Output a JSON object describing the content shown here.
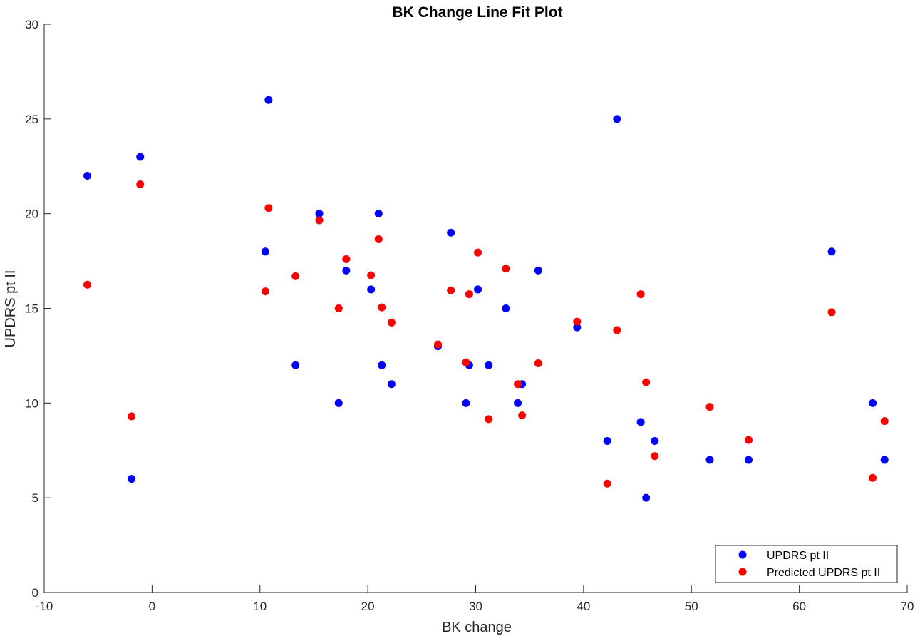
{
  "chart_data": {
    "type": "scatter",
    "title": "BK Change Line Fit Plot",
    "xlabel": "BK change",
    "ylabel": "UPDRS pt II",
    "xlim": [
      -10,
      70
    ],
    "ylim": [
      0,
      30
    ],
    "xticks": [
      -10,
      0,
      10,
      20,
      30,
      40,
      50,
      60,
      70
    ],
    "yticks": [
      0,
      5,
      10,
      15,
      20,
      25,
      30
    ],
    "grid": false,
    "legend_position": "bottom-right",
    "series": [
      {
        "name": "UPDRS pt II",
        "color": "#0000ff",
        "points": [
          [
            -6.0,
            22
          ],
          [
            -1.9,
            6
          ],
          [
            -1.1,
            23
          ],
          [
            10.5,
            18
          ],
          [
            10.8,
            26
          ],
          [
            13.3,
            12
          ],
          [
            15.5,
            20
          ],
          [
            17.3,
            10
          ],
          [
            18.0,
            17
          ],
          [
            20.3,
            16
          ],
          [
            21.0,
            20
          ],
          [
            21.3,
            12
          ],
          [
            22.2,
            11
          ],
          [
            26.5,
            13
          ],
          [
            27.7,
            19
          ],
          [
            29.1,
            10
          ],
          [
            29.4,
            12
          ],
          [
            30.2,
            16
          ],
          [
            31.2,
            12
          ],
          [
            32.8,
            15
          ],
          [
            33.9,
            10
          ],
          [
            34.3,
            11
          ],
          [
            35.8,
            17
          ],
          [
            39.4,
            14
          ],
          [
            42.2,
            8
          ],
          [
            43.1,
            25
          ],
          [
            45.3,
            9
          ],
          [
            45.8,
            5
          ],
          [
            46.6,
            8
          ],
          [
            51.7,
            7
          ],
          [
            55.3,
            7
          ],
          [
            63.0,
            18
          ],
          [
            66.8,
            10
          ],
          [
            67.9,
            7
          ]
        ]
      },
      {
        "name": "Predicted UPDRS pt II",
        "color": "#ff0000",
        "points": [
          [
            -6.0,
            16.25
          ],
          [
            -1.9,
            9.3
          ],
          [
            -1.1,
            21.55
          ],
          [
            10.5,
            15.9
          ],
          [
            10.8,
            20.3
          ],
          [
            13.3,
            16.7
          ],
          [
            15.5,
            19.65
          ],
          [
            17.3,
            15.0
          ],
          [
            18.0,
            17.6
          ],
          [
            20.3,
            16.75
          ],
          [
            21.0,
            18.65
          ],
          [
            21.3,
            15.05
          ],
          [
            22.2,
            14.25
          ],
          [
            26.5,
            13.1
          ],
          [
            27.7,
            15.95
          ],
          [
            29.1,
            12.15
          ],
          [
            29.4,
            15.75
          ],
          [
            30.2,
            17.95
          ],
          [
            31.2,
            9.15
          ],
          [
            32.8,
            17.1
          ],
          [
            33.9,
            11.0
          ],
          [
            34.3,
            9.35
          ],
          [
            35.8,
            12.1
          ],
          [
            39.4,
            14.3
          ],
          [
            42.2,
            5.75
          ],
          [
            43.1,
            13.85
          ],
          [
            45.3,
            15.75
          ],
          [
            45.8,
            11.1
          ],
          [
            46.6,
            7.2
          ],
          [
            51.7,
            9.8
          ],
          [
            55.3,
            8.05
          ],
          [
            63.0,
            14.8
          ],
          [
            66.8,
            6.05
          ],
          [
            67.9,
            9.05
          ]
        ]
      }
    ]
  }
}
